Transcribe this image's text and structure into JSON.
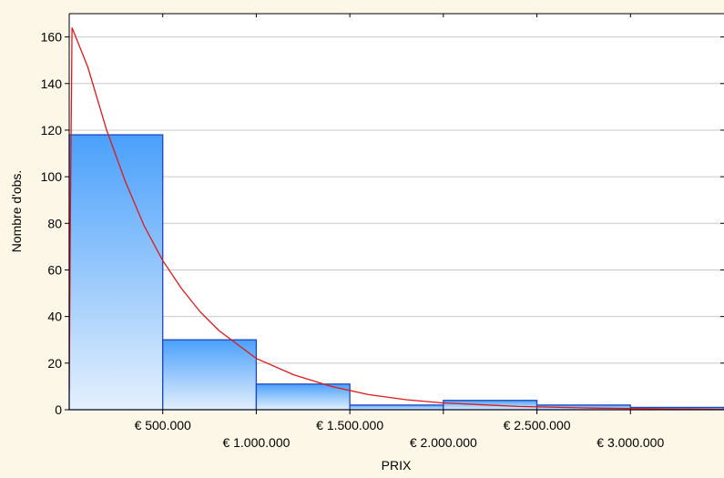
{
  "chart_data": {
    "type": "bar",
    "subtype": "histogram-with-fitted-curve",
    "xlabel": "PRIX",
    "ylabel": "Nombre d'obs.",
    "x_range": [
      0,
      3500000
    ],
    "ylim": [
      0,
      170
    ],
    "bin_width": 500000,
    "bins": [
      {
        "x0": 0,
        "x1": 500000,
        "count": 118
      },
      {
        "x0": 500000,
        "x1": 1000000,
        "count": 30
      },
      {
        "x0": 1000000,
        "x1": 1500000,
        "count": 11
      },
      {
        "x0": 1500000,
        "x1": 2000000,
        "count": 2
      },
      {
        "x0": 2000000,
        "x1": 2500000,
        "count": 4
      },
      {
        "x0": 2500000,
        "x1": 3000000,
        "count": 2
      },
      {
        "x0": 3000000,
        "x1": 3500000,
        "count": 1
      }
    ],
    "x_tick_labels": [
      {
        "value": 500000,
        "label": "€ 500.000",
        "row": 1
      },
      {
        "value": 1000000,
        "label": "€ 1.000.000",
        "row": 2
      },
      {
        "value": 1500000,
        "label": "€ 1.500.000",
        "row": 1
      },
      {
        "value": 2000000,
        "label": "€ 2.000.000",
        "row": 2
      },
      {
        "value": 2500000,
        "label": "€ 2.500.000",
        "row": 1
      },
      {
        "value": 3000000,
        "label": "€ 3.000.000",
        "row": 2
      }
    ],
    "y_ticks": [
      0,
      20,
      40,
      60,
      80,
      100,
      120,
      140,
      160
    ],
    "fitted_curve": {
      "type": "exponential-decay",
      "peak_x": 20000,
      "peak_y": 164,
      "points": [
        [
          0,
          8
        ],
        [
          5000,
          70
        ],
        [
          15000,
          164
        ],
        [
          100000,
          147
        ],
        [
          200000,
          120
        ],
        [
          300000,
          98
        ],
        [
          400000,
          79
        ],
        [
          500000,
          64
        ],
        [
          600000,
          52
        ],
        [
          700000,
          42
        ],
        [
          800000,
          34
        ],
        [
          900000,
          28
        ],
        [
          1000000,
          22
        ],
        [
          1200000,
          15
        ],
        [
          1400000,
          10
        ],
        [
          1600000,
          6.5
        ],
        [
          1800000,
          4.3
        ],
        [
          2000000,
          2.9
        ],
        [
          2400000,
          1.4
        ],
        [
          2800000,
          0.7
        ],
        [
          3200000,
          0.35
        ],
        [
          3500000,
          0.2
        ]
      ]
    },
    "grid": true,
    "colors": {
      "bar_top": "#4aa0fb",
      "bar_bottom": "#e4f0fd",
      "bar_stroke": "#1b48c0",
      "curve": "#e01818",
      "gridline": "#c9c9c9",
      "background": "#fdf7e7",
      "plot_background": "#ffffff"
    }
  }
}
